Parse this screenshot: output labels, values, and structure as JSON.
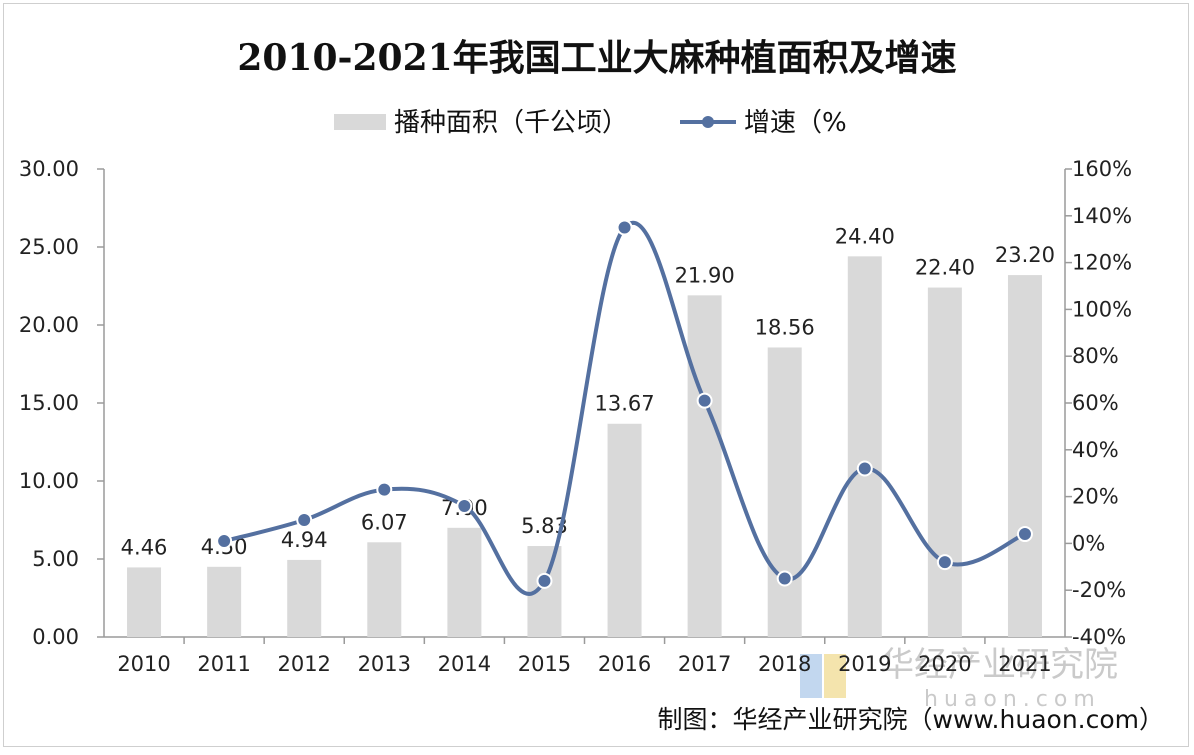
{
  "chart_data": {
    "type": "bar",
    "title": "2010-2021年我国工业大麻种植面积及增速",
    "categories": [
      "2010",
      "2011",
      "2012",
      "2013",
      "2014",
      "2015",
      "2016",
      "2017",
      "2018",
      "2019",
      "2020",
      "2021"
    ],
    "series": [
      {
        "name": "播种面积（千公顷）",
        "type": "bar",
        "axis": "left",
        "values": [
          4.46,
          4.5,
          4.94,
          6.07,
          7.0,
          5.83,
          13.67,
          21.9,
          18.56,
          24.4,
          22.4,
          23.2
        ],
        "labels": [
          "4.46",
          "4.50",
          "4.94",
          "6.07",
          "7.00",
          "5.83",
          "13.67",
          "21.90",
          "18.56",
          "24.40",
          "22.40",
          "23.20"
        ]
      },
      {
        "name": "增速（%",
        "type": "line",
        "axis": "right",
        "values": [
          null,
          1,
          10,
          23,
          16,
          -16,
          135,
          61,
          -15,
          32,
          -8,
          4
        ]
      }
    ],
    "y_left": {
      "min": 0,
      "max": 30,
      "step": 5,
      "tick_labels": [
        "0.00",
        "5.00",
        "10.00",
        "15.00",
        "20.00",
        "25.00",
        "30.00"
      ]
    },
    "y_right": {
      "min": -40,
      "max": 160,
      "step": 20,
      "tick_labels": [
        "-40%",
        "-20%",
        "0%",
        "20%",
        "40%",
        "60%",
        "80%",
        "100%",
        "120%",
        "140%",
        "160%"
      ]
    },
    "legend_position": "top-center",
    "grid": false
  },
  "colors": {
    "bar": "#d9d9d9",
    "line": "#5470a0",
    "axis": "#9a9a9a"
  },
  "watermark": {
    "text": "华经产业研究院",
    "url_text": "huaon.com"
  },
  "source": "制图：华经产业研究院（www.huaon.com）"
}
